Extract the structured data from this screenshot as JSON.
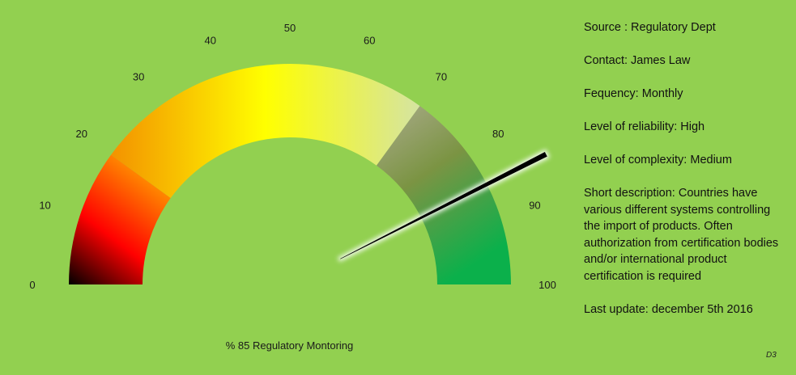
{
  "chart_data": {
    "type": "gauge",
    "value": 85,
    "min": 0,
    "max": 100,
    "tick_labels": [
      "0",
      "10",
      "20",
      "30",
      "40",
      "50",
      "60",
      "70",
      "80",
      "90",
      "100"
    ],
    "caption": "% 85 Regulatory Montoring",
    "bands": [
      {
        "from": 0,
        "to": 20,
        "colors": [
          "#000000",
          "#ff0000",
          "#ff9a00"
        ]
      },
      {
        "from": 20,
        "to": 70,
        "colors": [
          "#f59a00",
          "#ffff00",
          "#d4e4a0"
        ]
      },
      {
        "from": 70,
        "to": 100,
        "colors": [
          "#a8ab88",
          "#73953e",
          "#0cb04a"
        ]
      }
    ],
    "needle_color": "#000000"
  },
  "info": {
    "source": "Source : Regulatory Dept",
    "contact": "Contact: James Law",
    "frequency": "Fequency: Monthly",
    "reliability": "Level of reliability: High",
    "complexity": "Level of complexity: Medium",
    "description": "Short description:  Countries have various different systems controlling the import of products. Often authorization from certification bodies and/or international product certification is required",
    "last_update": "Last update:  december 5th 2016"
  },
  "footer_tag": "D3"
}
